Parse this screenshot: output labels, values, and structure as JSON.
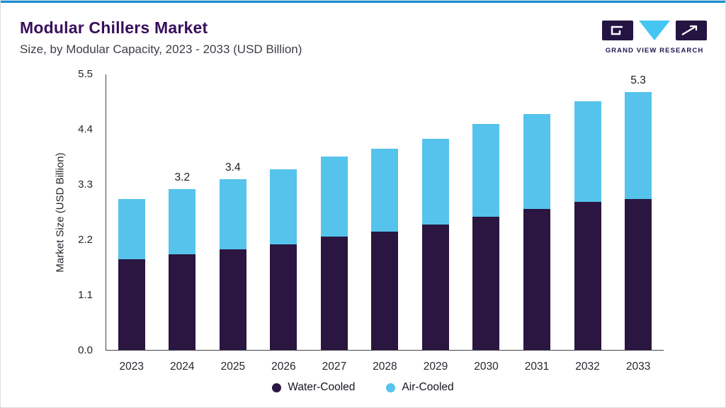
{
  "page": {
    "title": "Modular Chillers Market",
    "subtitle": "Size, by Modular Capacity, 2023 - 2033 (USD Billion)",
    "logo_text": "GRAND VIEW RESEARCH"
  },
  "colors": {
    "accent_line": "#1a8fd1",
    "title_text": "#370f5c",
    "water_cooled": "#2a1640",
    "air_cooled": "#55c3ec",
    "logo_dark": "#241442",
    "logo_cyan": "#45c6f2"
  },
  "chart_data": {
    "type": "bar",
    "stacked": true,
    "title": "Modular Chillers Market",
    "subtitle": "Size, by Modular Capacity, 2023 - 2033 (USD Billion)",
    "xlabel": "",
    "ylabel": "Market Size (USD Billion)",
    "ylim": [
      0,
      5.5
    ],
    "yticks": [
      0.0,
      1.1,
      2.2,
      3.3,
      4.4,
      5.5
    ],
    "grid": false,
    "legend_position": "bottom",
    "categories": [
      "2023",
      "2024",
      "2025",
      "2026",
      "2027",
      "2028",
      "2029",
      "2030",
      "2031",
      "2032",
      "2033"
    ],
    "series": [
      {
        "name": "Water-Cooled",
        "color": "#2a1640",
        "values": [
          1.8,
          1.9,
          2.0,
          2.1,
          2.25,
          2.35,
          2.5,
          2.65,
          2.8,
          2.95,
          3.1
        ]
      },
      {
        "name": "Air-Cooled",
        "color": "#55c3ec",
        "values": [
          1.2,
          1.3,
          1.4,
          1.5,
          1.6,
          1.65,
          1.7,
          1.85,
          1.9,
          2.0,
          2.2
        ]
      }
    ],
    "totals": [
      3.0,
      3.2,
      3.4,
      3.6,
      3.85,
      4.0,
      4.2,
      4.5,
      4.7,
      4.95,
      5.3
    ],
    "total_labels": {
      "2024": "3.2",
      "2025": "3.4",
      "2033": "5.3"
    }
  }
}
